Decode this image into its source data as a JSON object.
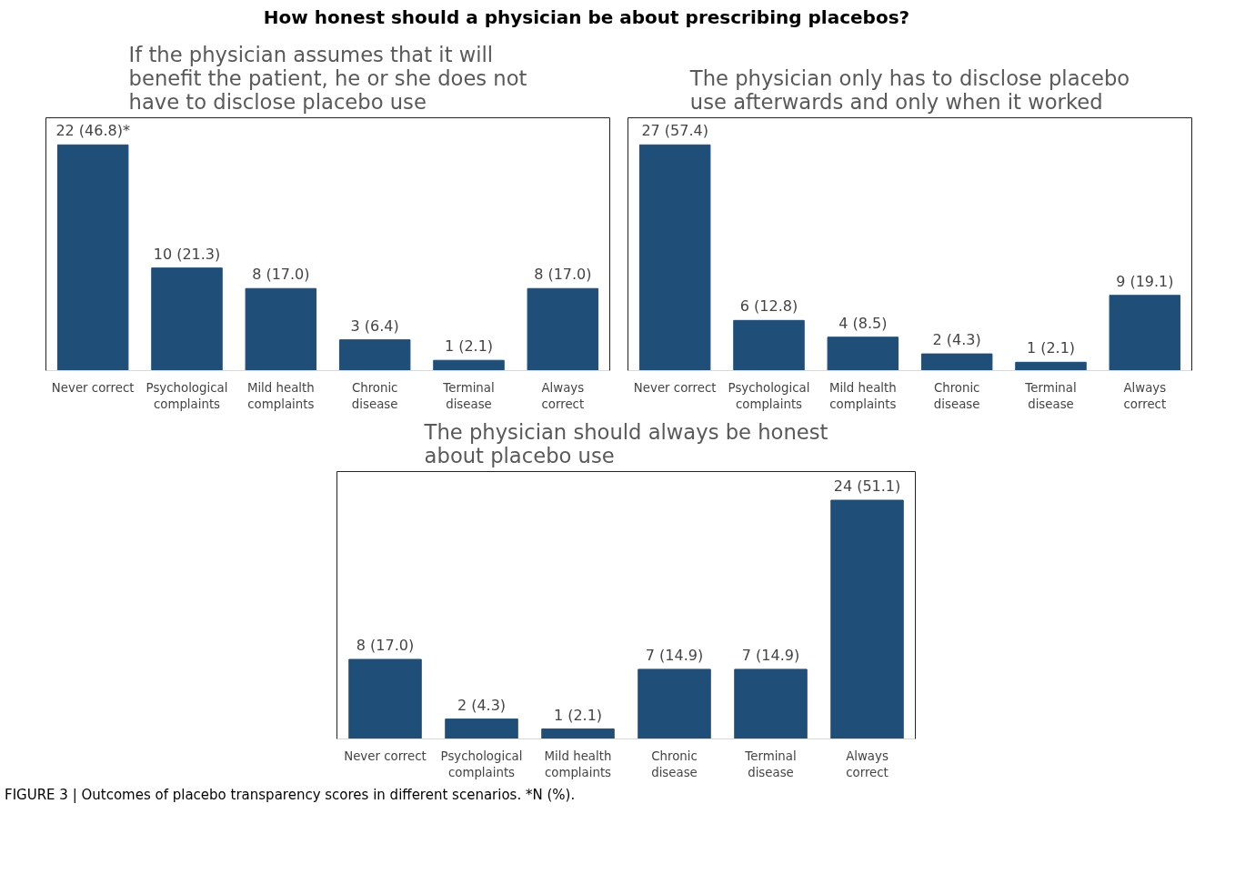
{
  "chart_data": [
    {
      "type": "bar",
      "title": "If the physician assumes that it will benefit the patient, he or she does not have to disclose placebo use",
      "categories": [
        "Never correct",
        "Psychological complaints",
        "Mild health complaints",
        "Chronic disease",
        "Terminal disease",
        "Always correct"
      ],
      "values": [
        22,
        10,
        8,
        3,
        1,
        8
      ],
      "value_labels": [
        "22 (46.8)*",
        "10 (21.3)",
        "8 (17.0)",
        "3 (6.4)",
        "1 (2.1)",
        "8 (17.0)"
      ],
      "color": "#1f4e79",
      "grid": false,
      "tick_labels": "x",
      "annotations": [
        "How honest should a physician be about prescribing placebos?"
      ]
    },
    {
      "type": "bar",
      "title": "The physician only has to disclose placebo use afterwards and only when it worked",
      "categories": [
        "Never correct",
        "Psychological complaints",
        "Mild health complaints",
        "Chronic disease",
        "Terminal disease",
        "Always correct"
      ],
      "values": [
        27,
        6,
        4,
        2,
        1,
        9
      ],
      "value_labels": [
        "27 (57.4)",
        "6 (12.8)",
        "4 (8.5)",
        "2 (4.3)",
        "1 (2.1)",
        "9 (19.1)"
      ],
      "color": "#1f4e79",
      "grid": false,
      "tick_labels": "x"
    },
    {
      "type": "bar",
      "title": "The physician should always be honest about placebo use",
      "categories": [
        "Never correct",
        "Psychological complaints",
        "Mild health complaints",
        "Chronic disease",
        "Terminal disease",
        "Always correct"
      ],
      "values": [
        8,
        2,
        1,
        7,
        7,
        24
      ],
      "value_labels": [
        "8 (17.0)",
        "2 (4.3)",
        "1 (2.1)",
        "7 (14.9)",
        "7 (14.9)",
        "24 (51.1)"
      ],
      "color": "#1f4e79",
      "grid": false,
      "tick_labels": "x",
      "annotations": [
        "FIGURE 3 | Outcomes of placebo transparency scores in different scenarios. *N (%)."
      ]
    }
  ]
}
